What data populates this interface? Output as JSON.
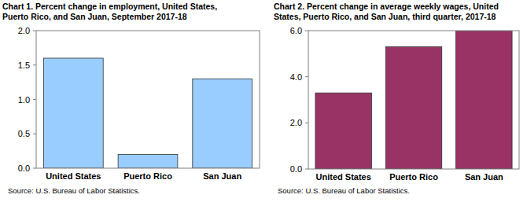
{
  "chart_data": [
    {
      "type": "bar",
      "title": "Chart 1. Percent change in employment, United States,\nPuerto Rico, and San Juan, September 2017-18",
      "categories": [
        "United States",
        "Puerto Rico",
        "San Juan"
      ],
      "values": [
        1.6,
        0.2,
        1.3
      ],
      "color": "#99ccff",
      "ylim": [
        0,
        2
      ],
      "yticks": [
        {
          "value": 0,
          "label": "0.0"
        },
        {
          "value": 0.5,
          "label": "0.5"
        },
        {
          "value": 1,
          "label": "1.0"
        },
        {
          "value": 1.5,
          "label": "1.5"
        },
        {
          "value": 2,
          "label": "2.0"
        }
      ],
      "grid": false,
      "source": "Source: U.S. Bureau of Labor Statistics."
    },
    {
      "type": "bar",
      "title": "Chart 2. Percent change in average weekly wages, United\nStates, Puerto Rico, and San Juan, third quarter, 2017-18",
      "categories": [
        "United States",
        "Puerto Rico",
        "San Juan"
      ],
      "values": [
        3.3,
        5.3,
        6.0
      ],
      "color": "#993366",
      "ylim": [
        0,
        6
      ],
      "yticks": [
        {
          "value": 0,
          "label": "0.0"
        },
        {
          "value": 2,
          "label": "2.0"
        },
        {
          "value": 4,
          "label": "4.0"
        },
        {
          "value": 6,
          "label": "6.0"
        }
      ],
      "grid": false,
      "source": "Source: U.S. Bureau of Labor Statistics."
    }
  ]
}
